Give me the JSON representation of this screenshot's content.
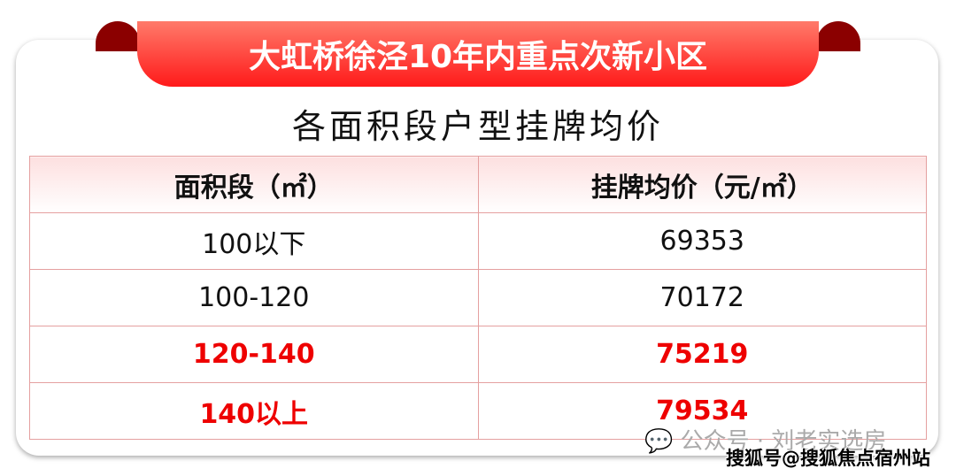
{
  "title": "大虹桥徐泾10年内重点次新小区",
  "subtitle": "各面积段户型挂牌均价",
  "table": {
    "headers": [
      "面积段（㎡）",
      "挂牌均价（元/㎡）"
    ],
    "rows": [
      [
        "100以下",
        "69353"
      ],
      [
        "100-120",
        "70172"
      ],
      [
        "120-140",
        "75219"
      ],
      [
        "140以上",
        "79534"
      ]
    ]
  },
  "highlight_color": "#e00000",
  "watermark": "公众号 · 刘老实选房",
  "watermark_icon": "wechat-icon",
  "source": "搜狐号@搜狐焦点宿州站"
}
